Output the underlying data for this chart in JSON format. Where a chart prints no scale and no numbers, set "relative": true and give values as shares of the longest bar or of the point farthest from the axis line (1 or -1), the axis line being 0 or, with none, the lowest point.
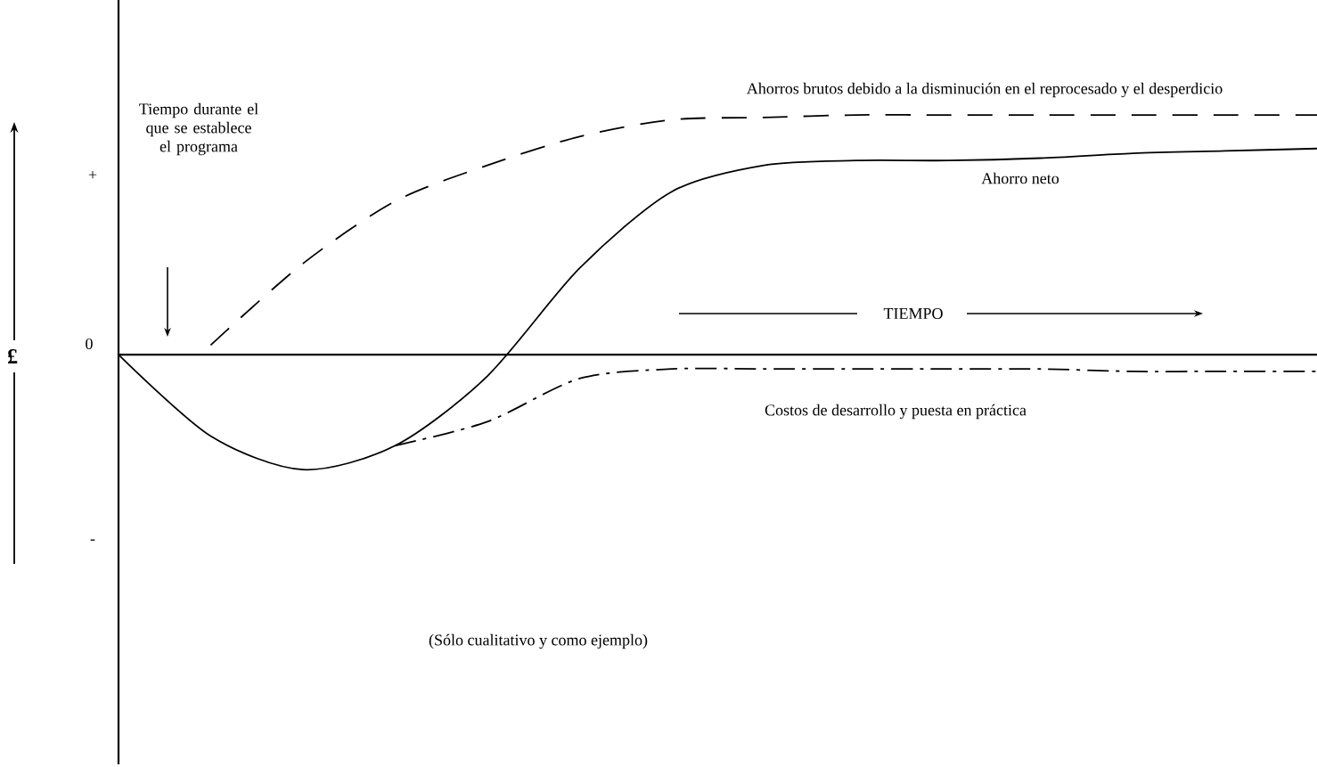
{
  "chart_data": {
    "type": "line",
    "relative": true,
    "xlabel": "TIEMPO",
    "ylabel": "£",
    "categories": [
      null,
      null,
      null,
      null,
      null,
      null,
      null,
      null,
      null,
      null,
      null,
      null,
      null,
      null
    ],
    "series": [
      {
        "name": "Ahorros brutos debido a la disminución en el reprocesado y el desperdicio",
        "color": "#000000",
        "line_style": "dashed",
        "values": [
          null,
          0.04,
          0.38,
          0.64,
          0.79,
          0.91,
          0.98,
          0.99,
          1,
          1,
          1,
          1,
          1,
          1
        ]
      },
      {
        "name": "Ahorro neto",
        "color": "#000000",
        "line_style": "solid",
        "values": [
          0,
          -0.34,
          -0.48,
          -0.38,
          -0.09,
          0.36,
          0.68,
          0.79,
          0.81,
          0.81,
          0.82,
          0.84,
          0.85,
          0.86
        ]
      },
      {
        "name": "Costos de desarrollo y puesta en práctica",
        "color": "#000000",
        "line_style": "dashdot",
        "values": [
          null,
          null,
          null,
          -0.38,
          -0.28,
          -0.1,
          -0.06,
          -0.06,
          -0.06,
          -0.06,
          -0.06,
          -0.07,
          -0.07,
          -0.07
        ]
      }
    ],
    "annotations": [
      "Tiempo durante el que se establece el programa",
      "(Sólo cualitativo y como ejemplo)",
      "+",
      "0",
      "-"
    ]
  }
}
